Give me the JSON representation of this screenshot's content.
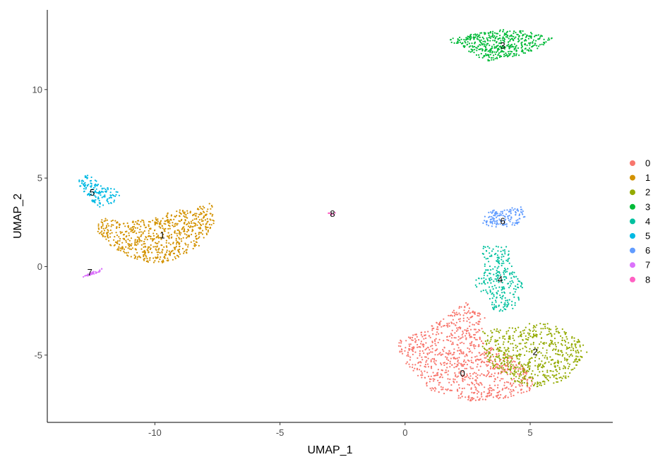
{
  "chart_data": {
    "type": "scatter",
    "xlabel": "UMAP_1",
    "ylabel": "UMAP_2",
    "xlim": [
      -14.3,
      8.3
    ],
    "ylim": [
      -8.8,
      14.5
    ],
    "x_ticks": [
      -10,
      -5,
      0,
      5
    ],
    "x_tick_labels": [
      "-10",
      "-5",
      "0",
      "5"
    ],
    "y_ticks": [
      -5,
      0,
      5,
      10
    ],
    "y_tick_labels": [
      "-5",
      "0",
      "5",
      "10"
    ],
    "grid": false,
    "legend_position": "right",
    "legend": [
      "0",
      "1",
      "2",
      "3",
      "4",
      "5",
      "6",
      "7",
      "8"
    ],
    "clusters": [
      {
        "name": "0",
        "color": "#F8766D",
        "label_at": [
          2.3,
          -6.0
        ],
        "approx_points": 900,
        "region": [
          [
            -0.3,
            -4.2
          ],
          [
            0.8,
            -3.6
          ],
          [
            2.4,
            -2.0
          ],
          [
            3.2,
            -2.8
          ],
          [
            3.0,
            -4.0
          ],
          [
            4.5,
            -5.3
          ],
          [
            5.2,
            -6.5
          ],
          [
            5.0,
            -7.0
          ],
          [
            4.2,
            -7.4
          ],
          [
            2.5,
            -7.6
          ],
          [
            1.0,
            -7.0
          ],
          [
            0.3,
            -6.0
          ],
          [
            -0.2,
            -5.0
          ]
        ]
      },
      {
        "name": "1",
        "color": "#D39200",
        "label_at": [
          -9.7,
          1.8
        ],
        "approx_points": 700,
        "region": [
          [
            -12.2,
            2.8
          ],
          [
            -11.3,
            2.5
          ],
          [
            -10.2,
            2.7
          ],
          [
            -9.5,
            3.1
          ],
          [
            -8.5,
            3.3
          ],
          [
            -7.7,
            3.6
          ],
          [
            -7.6,
            2.4
          ],
          [
            -8.2,
            1.2
          ],
          [
            -9.3,
            0.3
          ],
          [
            -10.2,
            0.1
          ],
          [
            -11.1,
            0.6
          ],
          [
            -11.9,
            1.3
          ],
          [
            -12.3,
            2.0
          ]
        ]
      },
      {
        "name": "2",
        "color": "#93AA00",
        "label_at": [
          5.2,
          -4.8
        ],
        "approx_points": 600,
        "region": [
          [
            3.1,
            -3.6
          ],
          [
            4.6,
            -3.4
          ],
          [
            5.3,
            -3.0
          ],
          [
            6.3,
            -3.5
          ],
          [
            7.0,
            -4.2
          ],
          [
            7.3,
            -4.8
          ],
          [
            7.0,
            -5.3
          ],
          [
            6.5,
            -6.4
          ],
          [
            5.3,
            -6.8
          ],
          [
            4.5,
            -6.6
          ],
          [
            3.4,
            -5.6
          ],
          [
            3.1,
            -4.6
          ]
        ]
      },
      {
        "name": "3",
        "color": "#00BA38",
        "label_at": [
          3.9,
          12.5
        ],
        "approx_points": 450,
        "region": [
          [
            1.6,
            12.8
          ],
          [
            2.6,
            13.1
          ],
          [
            3.9,
            13.4
          ],
          [
            4.9,
            13.3
          ],
          [
            5.9,
            12.9
          ],
          [
            5.3,
            12.3
          ],
          [
            4.3,
            11.8
          ],
          [
            3.2,
            11.6
          ],
          [
            2.6,
            12.1
          ]
        ]
      },
      {
        "name": "4",
        "color": "#00C19F",
        "label_at": [
          3.8,
          -0.7
        ],
        "approx_points": 260,
        "region": [
          [
            3.0,
            1.2
          ],
          [
            4.1,
            1.2
          ],
          [
            4.3,
            -0.2
          ],
          [
            4.8,
            -1.2
          ],
          [
            4.4,
            -2.4
          ],
          [
            3.6,
            -2.6
          ],
          [
            3.2,
            -1.6
          ],
          [
            2.7,
            -1.0
          ],
          [
            3.2,
            0.2
          ]
        ]
      },
      {
        "name": "5",
        "color": "#00B9E3",
        "label_at": [
          -12.5,
          4.2
        ],
        "approx_points": 140,
        "region": [
          [
            -13.1,
            5.0
          ],
          [
            -12.6,
            5.2
          ],
          [
            -12.1,
            4.5
          ],
          [
            -11.3,
            4.3
          ],
          [
            -11.6,
            3.6
          ],
          [
            -12.2,
            3.3
          ],
          [
            -12.6,
            3.8
          ],
          [
            -13.0,
            4.5
          ]
        ]
      },
      {
        "name": "6",
        "color": "#619CFF",
        "label_at": [
          3.9,
          2.6
        ],
        "approx_points": 130,
        "region": [
          [
            3.1,
            2.7
          ],
          [
            3.4,
            3.2
          ],
          [
            4.1,
            3.3
          ],
          [
            4.7,
            3.4
          ],
          [
            4.8,
            2.8
          ],
          [
            4.4,
            2.3
          ],
          [
            3.6,
            2.2
          ],
          [
            3.1,
            2.3
          ]
        ]
      },
      {
        "name": "7",
        "color": "#DB72FB",
        "label_at": [
          -12.6,
          -0.3
        ],
        "approx_points": 40,
        "region": [
          [
            -12.9,
            -0.6
          ],
          [
            -12.5,
            -0.3
          ],
          [
            -12.1,
            -0.1
          ],
          [
            -12.2,
            -0.3
          ],
          [
            -12.6,
            -0.5
          ]
        ]
      },
      {
        "name": "8",
        "color": "#FF61C3",
        "label_at": [
          -2.9,
          3.0
        ],
        "approx_points": 8,
        "region": [
          [
            -3.1,
            3.0
          ],
          [
            -2.9,
            3.1
          ],
          [
            -2.7,
            3.0
          ],
          [
            -2.9,
            2.9
          ]
        ]
      }
    ]
  }
}
